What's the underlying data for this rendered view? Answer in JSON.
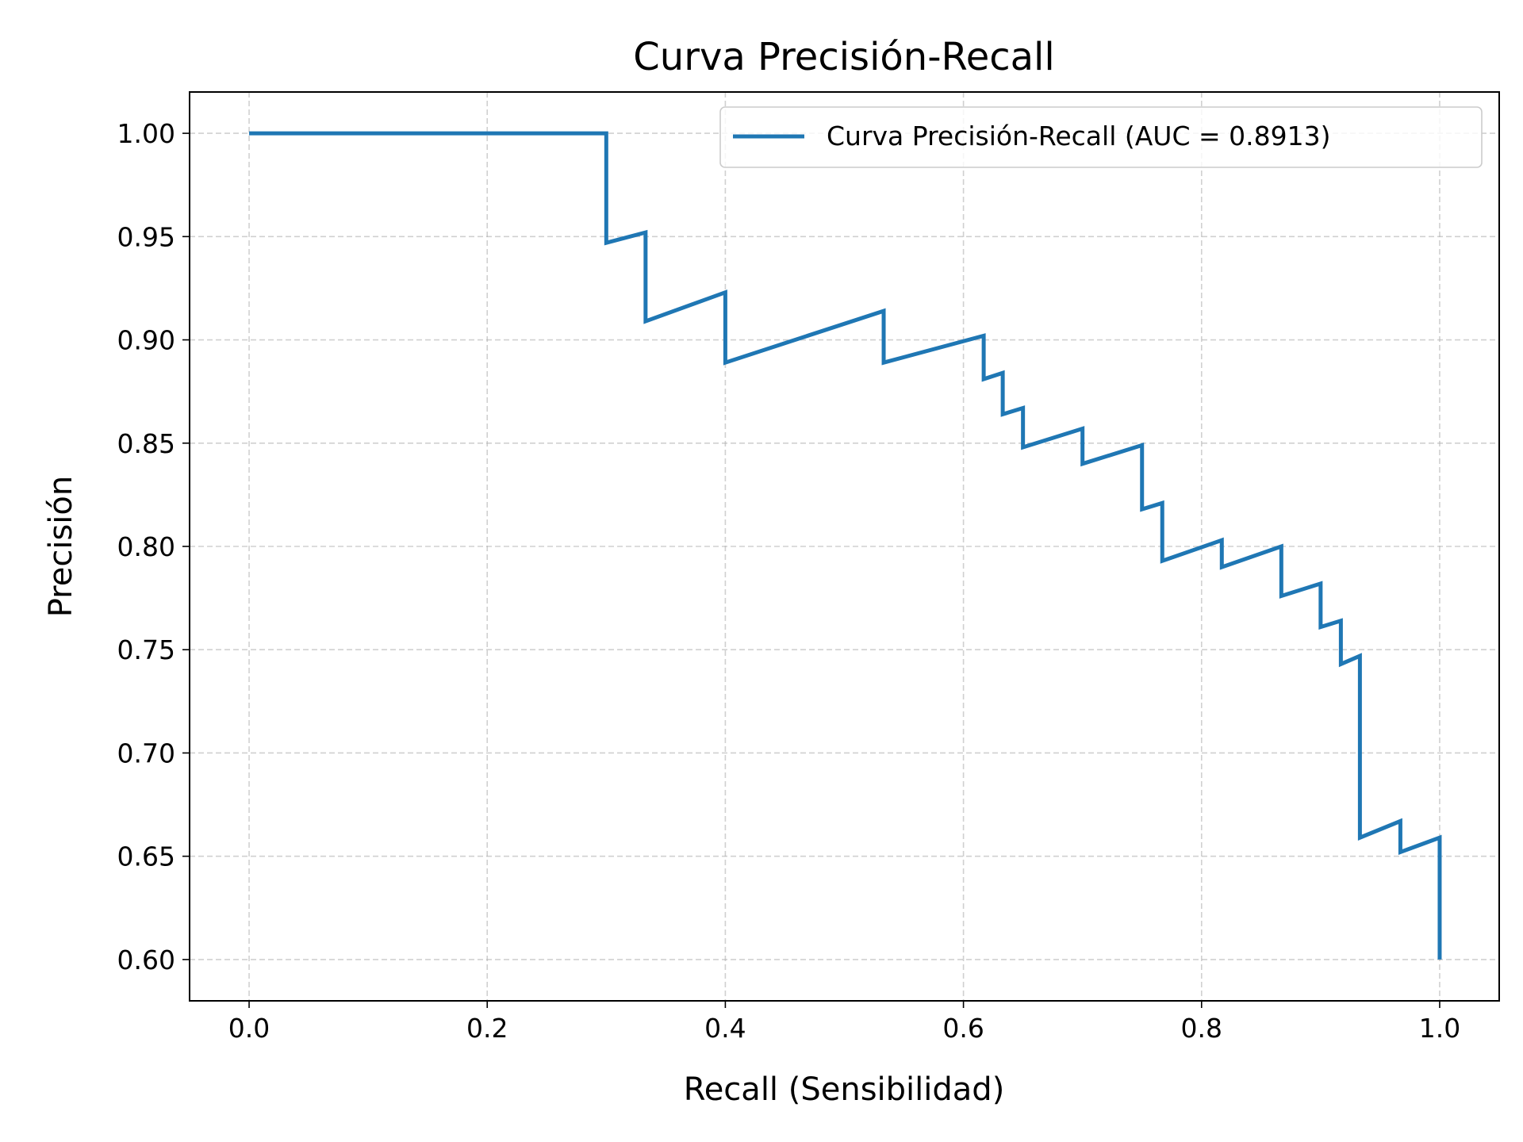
{
  "chart_data": {
    "type": "line",
    "title": "Curva Precisión-Recall",
    "xlabel": "Recall (Sensibilidad)",
    "ylabel": "Precisión",
    "xlim": [
      -0.05,
      1.05
    ],
    "ylim": [
      0.58,
      1.02
    ],
    "x_ticks": [
      0.0,
      0.2,
      0.4,
      0.6,
      0.8,
      1.0
    ],
    "x_tick_labels": [
      "0.0",
      "0.2",
      "0.4",
      "0.6",
      "0.8",
      "1.0"
    ],
    "y_ticks": [
      0.6,
      0.65,
      0.7,
      0.75,
      0.8,
      0.85,
      0.9,
      0.95,
      1.0
    ],
    "y_tick_labels": [
      "0.60",
      "0.65",
      "0.70",
      "0.75",
      "0.80",
      "0.85",
      "0.90",
      "0.95",
      "1.00"
    ],
    "grid": true,
    "legend_position": "top-right",
    "series": [
      {
        "name": "Curva Precisión-Recall (AUC = 0.8913)",
        "color": "#1f77b4",
        "x": [
          0.0,
          0.3,
          0.3,
          0.333,
          0.333,
          0.4,
          0.4,
          0.533,
          0.533,
          0.617,
          0.617,
          0.633,
          0.633,
          0.65,
          0.65,
          0.7,
          0.7,
          0.75,
          0.75,
          0.767,
          0.767,
          0.817,
          0.817,
          0.867,
          0.867,
          0.9,
          0.9,
          0.917,
          0.917,
          0.933,
          0.933,
          0.967,
          0.967,
          1.0,
          1.0
        ],
        "y": [
          1.0,
          1.0,
          0.947,
          0.952,
          0.909,
          0.923,
          0.889,
          0.914,
          0.889,
          0.902,
          0.881,
          0.884,
          0.864,
          0.867,
          0.848,
          0.857,
          0.84,
          0.849,
          0.818,
          0.821,
          0.793,
          0.803,
          0.79,
          0.8,
          0.776,
          0.782,
          0.761,
          0.764,
          0.743,
          0.747,
          0.659,
          0.667,
          0.652,
          0.659,
          0.6
        ]
      }
    ]
  }
}
